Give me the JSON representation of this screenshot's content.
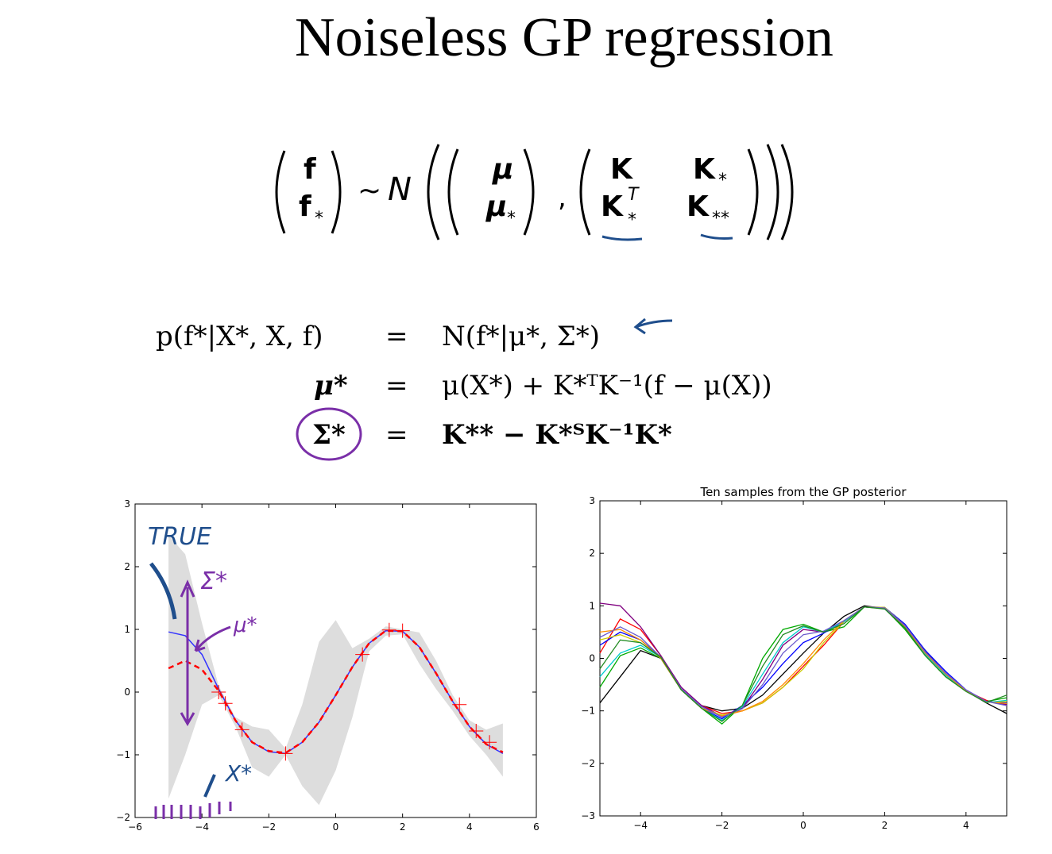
{
  "title": "Noiseless GP regression",
  "joint_equation": {
    "vec_top": "f",
    "vec_bottom": "f",
    "sub": "*",
    "sim": "~",
    "normal": "N",
    "mean_top": "μ",
    "mean_bottom": "μ",
    "cov_tl": "K",
    "cov_tr": "K",
    "cov_tr_sub": "*",
    "cov_bl": "K",
    "cov_bl_sup": "T",
    "cov_bl_sub": "*",
    "cov_br": "K",
    "cov_br_sub": "**"
  },
  "posterior_equations": {
    "lhs1": "p(f*|X*, X, f)",
    "rhs1": "N(f*|μ*, Σ*)",
    "lhs2": "μ*",
    "rhs2": "μ(X*) + K*ᵀK⁻¹(f − μ(X))",
    "lhs3": "Σ*",
    "rhs3": "K** − K*ᵀK⁻¹K*",
    "eq": "="
  },
  "annotations": {
    "true_label": "TRUE",
    "sigma_label": "Σ*",
    "mu_label": "μ*",
    "x_label": "X*"
  },
  "chart_data": [
    {
      "type": "line",
      "title": "",
      "xlim": [
        -6,
        6
      ],
      "ylim": [
        -2,
        3
      ],
      "xticks": [
        "−6",
        "−4",
        "−2",
        "0",
        "2",
        "4",
        "6"
      ],
      "yticks": [
        "−2",
        "−1",
        "0",
        "1",
        "2",
        "3"
      ],
      "training_points": {
        "x": [
          -3.5,
          -3.3,
          -2.8,
          -1.5,
          0.8,
          1.6,
          2.0,
          3.7,
          4.2,
          4.6
        ],
        "y": [
          0.0,
          -0.18,
          -0.6,
          -0.98,
          0.6,
          0.99,
          0.98,
          -0.2,
          -0.62,
          -0.8
        ]
      },
      "series": [
        {
          "kind": "true_function",
          "color": "#3333ff",
          "x": [
            -5,
            -4.5,
            -4,
            -3.5,
            -3,
            -2.5,
            -2,
            -1.5,
            -1,
            -0.5,
            0,
            0.5,
            1,
            1.5,
            2,
            2.5,
            3,
            3.5,
            4,
            4.5,
            5
          ],
          "y": [
            0.96,
            0.9,
            0.6,
            0.05,
            -0.45,
            -0.8,
            -0.95,
            -0.98,
            -0.8,
            -0.48,
            -0.05,
            0.4,
            0.78,
            0.98,
            0.97,
            0.72,
            0.3,
            -0.15,
            -0.55,
            -0.83,
            -0.98
          ]
        },
        {
          "kind": "posterior_mean",
          "color": "#ff0000",
          "x": [
            -5,
            -4.5,
            -4,
            -3.5,
            -3,
            -2.5,
            -2,
            -1.5,
            -1,
            -0.5,
            0,
            0.5,
            1,
            1.5,
            2,
            2.5,
            3,
            3.5,
            4,
            4.5,
            5
          ],
          "y": [
            0.38,
            0.5,
            0.36,
            0.02,
            -0.45,
            -0.8,
            -0.94,
            -0.97,
            -0.8,
            -0.48,
            -0.05,
            0.4,
            0.78,
            0.98,
            0.97,
            0.72,
            0.3,
            -0.15,
            -0.55,
            -0.83,
            -0.96
          ]
        }
      ],
      "band": {
        "color": "#dddddd",
        "x": [
          -5,
          -4.5,
          -4,
          -3.5,
          -3,
          -2.5,
          -2,
          -1.5,
          -1,
          -0.5,
          0,
          0.5,
          1,
          1.5,
          2,
          2.5,
          3,
          3.5,
          4,
          4.5,
          5
        ],
        "upper": [
          2.5,
          2.2,
          1.1,
          0.1,
          -0.4,
          -0.55,
          -0.6,
          -0.9,
          -0.2,
          0.8,
          1.15,
          0.7,
          0.85,
          1.05,
          1.0,
          0.95,
          0.5,
          -0.05,
          -0.45,
          -0.6,
          -0.5
        ],
        "lower": [
          -1.7,
          -1.0,
          -0.2,
          -0.05,
          -0.55,
          -1.2,
          -1.35,
          -1.0,
          -1.5,
          -1.8,
          -1.25,
          -0.4,
          0.65,
          0.9,
          0.92,
          0.45,
          0.05,
          -0.3,
          -0.7,
          -1.0,
          -1.35
        ]
      }
    },
    {
      "type": "line",
      "title": "Ten samples from the GP posterior",
      "xlim": [
        -5,
        5
      ],
      "ylim": [
        -3,
        3
      ],
      "xticks": [
        "−4",
        "−2",
        "0",
        "2",
        "4"
      ],
      "yticks": [
        "−3",
        "−2",
        "−1",
        "0",
        "1",
        "2",
        "3"
      ],
      "x": [
        -5,
        -4.5,
        -4,
        -3.5,
        -3,
        -2.5,
        -2,
        -1.5,
        -1,
        -0.5,
        0,
        0.5,
        1,
        1.5,
        2,
        2.5,
        3,
        3.5,
        4,
        4.5,
        5
      ],
      "series": [
        {
          "color": "#000000",
          "y": [
            -0.85,
            -0.35,
            0.15,
            0.0,
            -0.6,
            -0.9,
            -1.0,
            -0.95,
            -0.7,
            -0.3,
            0.1,
            0.48,
            0.8,
            1.0,
            0.95,
            0.6,
            0.15,
            -0.3,
            -0.62,
            -0.85,
            -1.05
          ]
        },
        {
          "color": "#ff0000",
          "y": [
            0.1,
            0.75,
            0.55,
            0.05,
            -0.6,
            -0.9,
            -1.05,
            -1.0,
            -0.85,
            -0.55,
            -0.15,
            0.25,
            0.7,
            0.98,
            0.95,
            0.62,
            0.12,
            -0.3,
            -0.62,
            -0.8,
            -0.9
          ]
        },
        {
          "color": "#00aa00",
          "y": [
            -0.55,
            0.05,
            0.2,
            0.0,
            -0.6,
            -0.95,
            -1.25,
            -0.9,
            0.0,
            0.55,
            0.65,
            0.5,
            0.6,
            0.98,
            0.95,
            0.55,
            0.05,
            -0.35,
            -0.62,
            -0.82,
            -0.75
          ]
        },
        {
          "color": "#0000ff",
          "y": [
            0.25,
            0.5,
            0.35,
            0.02,
            -0.6,
            -0.95,
            -1.15,
            -0.9,
            -0.55,
            -0.1,
            0.3,
            0.48,
            0.7,
            0.98,
            0.97,
            0.65,
            0.15,
            -0.25,
            -0.6,
            -0.82,
            -0.85
          ]
        },
        {
          "color": "#800080",
          "y": [
            1.05,
            1.0,
            0.6,
            0.05,
            -0.55,
            -0.9,
            -1.1,
            -0.95,
            -0.4,
            0.25,
            0.55,
            0.5,
            0.7,
            0.98,
            0.95,
            0.6,
            0.1,
            -0.3,
            -0.62,
            -0.82,
            -0.88
          ]
        },
        {
          "color": "#cccc00",
          "y": [
            0.35,
            0.45,
            0.3,
            0.02,
            -0.6,
            -0.95,
            -1.08,
            -1.0,
            -0.85,
            -0.55,
            -0.2,
            0.3,
            0.7,
            0.98,
            0.97,
            0.62,
            0.12,
            -0.3,
            -0.62,
            -0.84,
            -0.82
          ]
        },
        {
          "color": "#00cccc",
          "y": [
            -0.35,
            0.1,
            0.25,
            0.02,
            -0.6,
            -0.95,
            -1.18,
            -0.92,
            -0.3,
            0.3,
            0.6,
            0.5,
            0.7,
            0.98,
            0.95,
            0.6,
            0.08,
            -0.32,
            -0.62,
            -0.84,
            -0.8
          ]
        },
        {
          "color": "#ff8c00",
          "y": [
            0.5,
            0.55,
            0.35,
            0.0,
            -0.6,
            -0.95,
            -1.1,
            -1.0,
            -0.82,
            -0.5,
            -0.1,
            0.35,
            0.72,
            0.98,
            0.96,
            0.6,
            0.1,
            -0.3,
            -0.62,
            -0.83,
            -0.86
          ]
        },
        {
          "color": "#6a5acd",
          "y": [
            0.4,
            0.6,
            0.4,
            0.02,
            -0.58,
            -0.92,
            -1.12,
            -0.96,
            -0.5,
            0.1,
            0.45,
            0.52,
            0.72,
            0.98,
            0.96,
            0.62,
            0.12,
            -0.28,
            -0.6,
            -0.82,
            -0.9
          ]
        },
        {
          "color": "#228b22",
          "y": [
            -0.2,
            0.35,
            0.3,
            0.02,
            -0.6,
            -0.95,
            -1.2,
            -0.9,
            -0.15,
            0.45,
            0.62,
            0.5,
            0.66,
            0.98,
            0.94,
            0.58,
            0.05,
            -0.35,
            -0.63,
            -0.84,
            -0.7
          ]
        }
      ]
    }
  ]
}
